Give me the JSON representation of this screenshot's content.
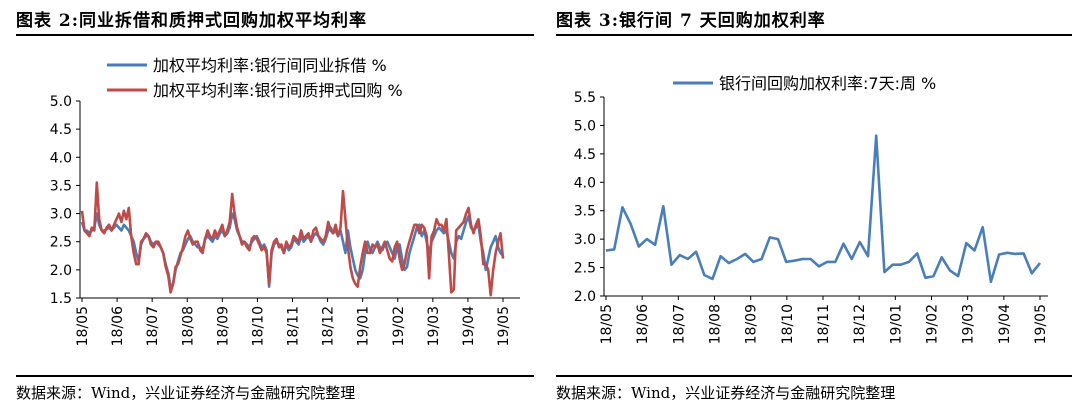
{
  "panels": [
    {
      "title": "图表 2:同业拆借和质押式回购加权平均利率",
      "source": "数据来源：Wind，兴业证券经济与金融研究院整理"
    },
    {
      "title": "图表 3:银行间 7 天回购加权利率",
      "source": "数据来源：Wind，兴业证券经济与金融研究院整理"
    }
  ],
  "chart_data": [
    {
      "type": "line",
      "x_tick_labels": [
        "18/05",
        "18/06",
        "18/07",
        "18/08",
        "18/09",
        "18/10",
        "18/11",
        "18/12",
        "19/01",
        "19/02",
        "19/03",
        "19/04",
        "19/05"
      ],
      "ylim": [
        1.5,
        5.0
      ],
      "y_ticks": [
        "1.5",
        "2.0",
        "2.5",
        "3.0",
        "3.5",
        "4.0",
        "4.5",
        "5.0"
      ],
      "legend_position": "top",
      "series": [
        {
          "name": "加权平均利率:银行间同业拆借 %",
          "color": "#4a7ebb",
          "values": [
            2.85,
            2.7,
            2.7,
            2.65,
            2.7,
            2.75,
            3.0,
            2.8,
            2.7,
            2.7,
            2.72,
            2.75,
            2.7,
            2.75,
            2.8,
            2.75,
            2.7,
            2.8,
            2.75,
            2.7,
            2.6,
            2.5,
            2.3,
            2.15,
            2.45,
            2.55,
            2.6,
            2.6,
            2.5,
            2.45,
            2.5,
            2.45,
            2.4,
            2.3,
            2.1,
            1.95,
            1.7,
            1.75,
            2.0,
            2.15,
            2.3,
            2.35,
            2.45,
            2.55,
            2.6,
            2.5,
            2.45,
            2.4,
            2.4,
            2.35,
            2.55,
            2.6,
            2.55,
            2.5,
            2.6,
            2.55,
            2.65,
            2.7,
            2.6,
            2.65,
            2.75,
            3.0,
            2.9,
            2.7,
            2.6,
            2.5,
            2.5,
            2.45,
            2.4,
            2.5,
            2.55,
            2.6,
            2.5,
            2.4,
            2.45,
            2.35,
            1.7,
            2.3,
            2.45,
            2.5,
            2.45,
            2.4,
            2.3,
            2.45,
            2.35,
            2.4,
            2.55,
            2.5,
            2.45,
            2.6,
            2.5,
            2.55,
            2.6,
            2.5,
            2.6,
            2.65,
            2.6,
            2.5,
            2.45,
            2.55,
            2.7,
            2.75,
            2.65,
            2.7,
            2.6,
            2.7,
            2.5,
            2.3,
            2.7,
            2.4,
            2.2,
            2.0,
            1.9,
            1.85,
            2.0,
            2.3,
            2.5,
            2.35,
            2.3,
            2.4,
            2.5,
            2.4,
            2.35,
            2.45,
            2.5,
            2.4,
            2.3,
            2.2,
            2.4,
            2.45,
            2.2,
            2.0,
            2.05,
            2.3,
            2.45,
            2.6,
            2.75,
            2.8,
            2.6,
            2.7,
            2.5,
            2.3,
            2.5,
            2.6,
            2.7,
            2.75,
            2.7,
            2.65,
            2.7,
            2.5,
            2.3,
            2.2,
            2.5,
            2.6,
            2.55,
            2.7,
            2.85,
            2.95,
            2.75,
            2.7,
            2.75,
            2.8,
            2.5,
            2.3,
            2.0,
            2.2,
            2.4,
            2.5,
            2.6,
            2.4,
            2.3,
            2.25
          ]
        },
        {
          "name": "加权平均利率:银行间质押式回购 %",
          "color": "#be4b48",
          "values": [
            3.05,
            2.7,
            2.65,
            2.6,
            2.75,
            2.7,
            3.55,
            2.9,
            2.7,
            2.65,
            2.75,
            2.8,
            2.7,
            2.8,
            2.9,
            3.0,
            2.85,
            3.05,
            2.9,
            3.1,
            2.6,
            2.3,
            2.1,
            2.1,
            2.5,
            2.55,
            2.65,
            2.6,
            2.45,
            2.4,
            2.5,
            2.5,
            2.4,
            2.3,
            2.05,
            1.9,
            1.6,
            1.75,
            2.05,
            2.1,
            2.25,
            2.4,
            2.6,
            2.7,
            2.55,
            2.45,
            2.5,
            2.5,
            2.35,
            2.3,
            2.55,
            2.7,
            2.6,
            2.55,
            2.7,
            2.6,
            2.7,
            2.8,
            2.6,
            2.7,
            2.85,
            3.35,
            3.0,
            2.75,
            2.6,
            2.45,
            2.5,
            2.4,
            2.35,
            2.55,
            2.6,
            2.55,
            2.45,
            2.35,
            2.4,
            2.3,
            1.75,
            2.35,
            2.5,
            2.55,
            2.4,
            2.45,
            2.3,
            2.5,
            2.4,
            2.45,
            2.6,
            2.55,
            2.5,
            2.7,
            2.55,
            2.6,
            2.65,
            2.5,
            2.7,
            2.75,
            2.6,
            2.55,
            2.5,
            2.6,
            2.85,
            2.7,
            2.65,
            2.8,
            2.6,
            2.75,
            3.4,
            2.9,
            2.4,
            2.05,
            1.85,
            1.75,
            1.7,
            2.05,
            2.3,
            2.5,
            2.3,
            2.3,
            2.45,
            2.4,
            2.45,
            2.3,
            2.4,
            2.5,
            2.35,
            2.2,
            2.15,
            2.4,
            2.5,
            2.2,
            2.0,
            2.1,
            2.35,
            2.5,
            2.65,
            2.8,
            2.8,
            2.65,
            2.8,
            2.75,
            2.6,
            1.85,
            2.6,
            2.7,
            2.9,
            2.8,
            2.8,
            2.7,
            2.9,
            2.3,
            1.6,
            1.65,
            2.7,
            2.75,
            2.8,
            2.85,
            3.0,
            3.1,
            2.8,
            2.65,
            2.8,
            2.9,
            2.6,
            2.1,
            2.1,
            2.0,
            1.55,
            2.0,
            2.3,
            2.5,
            2.65,
            2.2
          ]
        }
      ]
    },
    {
      "type": "line",
      "x_tick_labels": [
        "18/05",
        "18/06",
        "18/07",
        "18/08",
        "18/09",
        "18/10",
        "18/11",
        "18/12",
        "19/01",
        "19/02",
        "19/03",
        "19/04",
        "19/05"
      ],
      "ylim": [
        2.0,
        5.5
      ],
      "y_ticks": [
        "2.0",
        "2.5",
        "3.0",
        "3.5",
        "4.0",
        "4.5",
        "5.0",
        "5.5"
      ],
      "legend_position": "top",
      "series": [
        {
          "name": "银行间回购加权利率:7天:周 %",
          "color": "#4a7ebb",
          "values": [
            2.8,
            2.82,
            3.56,
            3.27,
            2.87,
            3.0,
            2.9,
            3.58,
            2.55,
            2.72,
            2.65,
            2.78,
            2.37,
            2.3,
            2.7,
            2.58,
            2.65,
            2.74,
            2.6,
            2.65,
            3.03,
            3.0,
            2.6,
            2.62,
            2.65,
            2.65,
            2.52,
            2.6,
            2.6,
            2.92,
            2.65,
            2.95,
            2.7,
            4.82,
            2.42,
            2.55,
            2.55,
            2.6,
            2.75,
            2.32,
            2.35,
            2.68,
            2.45,
            2.35,
            2.93,
            2.8,
            3.21,
            2.25,
            2.73,
            2.76,
            2.74,
            2.75,
            2.4,
            2.58
          ]
        }
      ]
    }
  ]
}
